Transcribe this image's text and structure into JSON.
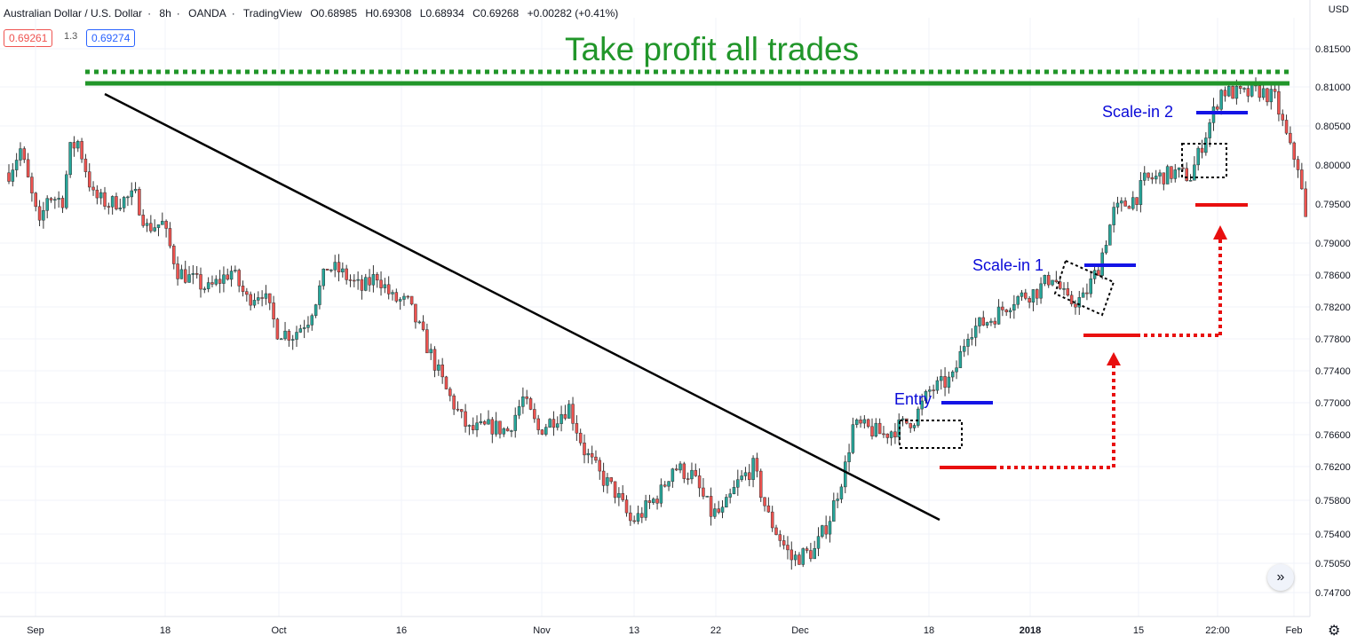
{
  "header": {
    "symbol": "Australian Dollar / U.S. Dollar",
    "interval": "8h",
    "broker": "OANDA",
    "platform": "TradingView",
    "open": "O0.68985",
    "high": "H0.69308",
    "low": "L0.68934",
    "close": "C0.69268",
    "change": "+0.00282 (+0.41%)",
    "sell_price": "0.69261",
    "spread": "1.3",
    "buy_price": "0.69274",
    "currency": "USD"
  },
  "chart_data": {
    "type": "candlestick",
    "y_axis": {
      "ticks": [
        "0.81500",
        "0.81000",
        "0.80500",
        "0.80000",
        "0.79500",
        "0.79000",
        "0.78600",
        "0.78200",
        "0.77800",
        "0.77400",
        "0.77000",
        "0.76600",
        "0.76200",
        "0.75800",
        "0.75400",
        "0.75050",
        "0.74700"
      ]
    },
    "x_axis": {
      "ticks": [
        {
          "label": "Sep",
          "bold": false
        },
        {
          "label": "18",
          "bold": false
        },
        {
          "label": "Oct",
          "bold": false
        },
        {
          "label": "16",
          "bold": false
        },
        {
          "label": "Nov",
          "bold": false
        },
        {
          "label": "13",
          "bold": false
        },
        {
          "label": "22",
          "bold": false
        },
        {
          "label": "Dec",
          "bold": false
        },
        {
          "label": "18",
          "bold": false
        },
        {
          "label": "2018",
          "bold": true
        },
        {
          "label": "15",
          "bold": false
        },
        {
          "label": "22:00",
          "bold": false
        },
        {
          "label": "Feb",
          "bold": false
        }
      ]
    },
    "colors": {
      "up": "#26a69a",
      "down": "#ef5350",
      "wick": "#333333",
      "grid": "#f0f3fa"
    },
    "path": [
      [
        0,
        0.799
      ],
      [
        3,
        0.802
      ],
      [
        8,
        0.792
      ],
      [
        10,
        0.796
      ],
      [
        14,
        0.7955
      ],
      [
        16,
        0.802
      ],
      [
        18,
        0.803
      ],
      [
        22,
        0.796
      ],
      [
        26,
        0.795
      ],
      [
        33,
        0.796
      ],
      [
        36,
        0.792
      ],
      [
        40,
        0.7925
      ],
      [
        44,
        0.7865
      ],
      [
        52,
        0.7842
      ],
      [
        58,
        0.7865
      ],
      [
        62,
        0.783
      ],
      [
        66,
        0.784
      ],
      [
        70,
        0.779
      ],
      [
        74,
        0.7785
      ],
      [
        78,
        0.7805
      ],
      [
        80,
        0.783
      ],
      [
        83,
        0.787
      ],
      [
        86,
        0.7865
      ],
      [
        92,
        0.7842
      ],
      [
        96,
        0.786
      ],
      [
        100,
        0.783
      ],
      [
        104,
        0.7825
      ],
      [
        110,
        0.776
      ],
      [
        114,
        0.7715
      ],
      [
        118,
        0.768
      ],
      [
        120,
        0.7665
      ],
      [
        126,
        0.767
      ],
      [
        130,
        0.7665
      ],
      [
        134,
        0.7705
      ],
      [
        138,
        0.7665
      ],
      [
        142,
        0.768
      ],
      [
        146,
        0.7695
      ],
      [
        150,
        0.764
      ],
      [
        154,
        0.761
      ],
      [
        158,
        0.759
      ],
      [
        162,
        0.7555
      ],
      [
        164,
        0.756
      ],
      [
        170,
        0.759
      ],
      [
        173,
        0.762
      ],
      [
        178,
        0.761
      ],
      [
        183,
        0.7565
      ],
      [
        186,
        0.7565
      ],
      [
        190,
        0.76
      ],
      [
        194,
        0.762
      ],
      [
        198,
        0.756
      ],
      [
        204,
        0.751
      ],
      [
        210,
        0.752
      ],
      [
        214,
        0.756
      ],
      [
        218,
        0.762
      ],
      [
        220,
        0.767
      ],
      [
        222,
        0.767
      ],
      [
        228,
        0.766
      ],
      [
        232,
        0.767
      ],
      [
        236,
        0.768
      ],
      [
        240,
        0.7715
      ],
      [
        246,
        0.773
      ],
      [
        250,
        0.779
      ],
      [
        256,
        0.7805
      ],
      [
        262,
        0.783
      ],
      [
        268,
        0.784
      ],
      [
        272,
        0.786
      ],
      [
        276,
        0.7825
      ],
      [
        280,
        0.783
      ],
      [
        284,
        0.787
      ],
      [
        288,
        0.794
      ],
      [
        294,
        0.796
      ],
      [
        296,
        0.798
      ],
      [
        304,
        0.799
      ],
      [
        308,
        0.7985
      ],
      [
        312,
        0.804
      ],
      [
        316,
        0.8095
      ],
      [
        322,
        0.809
      ],
      [
        326,
        0.8095
      ],
      [
        330,
        0.8085
      ],
      [
        334,
        0.802
      ],
      [
        336,
        0.8
      ],
      [
        338,
        0.793
      ]
    ],
    "lines": [
      {
        "name": "trendline",
        "from": [
          0.797,
          0.809
        ],
        "to": [
          0.698,
          0.756
        ],
        "color": "#000000"
      }
    ],
    "annotations": [
      {
        "text": "Take profit all trades",
        "color": "#21962a"
      },
      {
        "text": "Entry",
        "color": "#0a0ad8"
      },
      {
        "text": "Scale-in 1",
        "color": "#0a0ad8"
      },
      {
        "text": "Scale-in 2",
        "color": "#0a0ad8"
      }
    ]
  }
}
